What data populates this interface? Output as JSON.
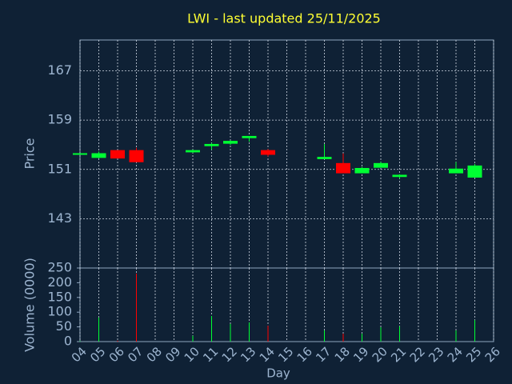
{
  "chart_data": [
    {
      "type": "candlestick",
      "title": "LWI - last updated 25/11/2025",
      "ylabel": "Price",
      "open": [
        153.5,
        153.0,
        154.0,
        154.0,
        null,
        null,
        153.9,
        154.9,
        155.3,
        156.2,
        154.0,
        null,
        null,
        152.8,
        151.9,
        150.5,
        151.4,
        149.9,
        null,
        null,
        150.5,
        149.8,
        null
      ],
      "high": [
        153.5,
        153.9,
        154.0,
        154.5,
        null,
        null,
        154.2,
        155.3,
        155.7,
        156.4,
        154.3,
        null,
        null,
        155.1,
        153.6,
        151.4,
        152.2,
        150.2,
        null,
        null,
        152.2,
        151.9,
        null
      ],
      "low": [
        153.5,
        152.8,
        152.9,
        152.3,
        null,
        null,
        153.7,
        154.2,
        155.0,
        155.5,
        153.1,
        null,
        null,
        152.8,
        150.4,
        150.5,
        151.4,
        149.5,
        null,
        null,
        150.4,
        149.8,
        null
      ],
      "close": [
        153.5,
        153.5,
        152.9,
        152.3,
        null,
        null,
        154.0,
        155.0,
        155.5,
        156.3,
        153.5,
        null,
        null,
        152.9,
        150.5,
        151.1,
        151.9,
        150.0,
        null,
        null,
        151.0,
        151.5,
        null
      ],
      "up_color": "#00ff33",
      "down_color": "#ff0000",
      "ylim": [
        135,
        172
      ],
      "yticks": [
        143,
        151,
        159,
        167
      ],
      "grid": true
    },
    {
      "type": "bar",
      "xlabel": "Day",
      "ylabel": "Volume (0000)",
      "categories": [
        "04",
        "05",
        "06",
        "07",
        "08",
        "09",
        "10",
        "11",
        "12",
        "13",
        "14",
        "15",
        "16",
        "17",
        "18",
        "19",
        "20",
        "21",
        "22",
        "23",
        "24",
        "25",
        "26"
      ],
      "values": [
        2,
        82,
        3,
        231,
        null,
        null,
        20,
        87,
        60,
        65,
        54,
        null,
        null,
        38,
        27,
        27,
        49,
        52,
        null,
        null,
        38,
        73,
        null
      ],
      "ylim": [
        0,
        250
      ],
      "yticks": [
        0,
        50,
        100,
        150,
        200,
        250
      ],
      "grid": true
    }
  ]
}
